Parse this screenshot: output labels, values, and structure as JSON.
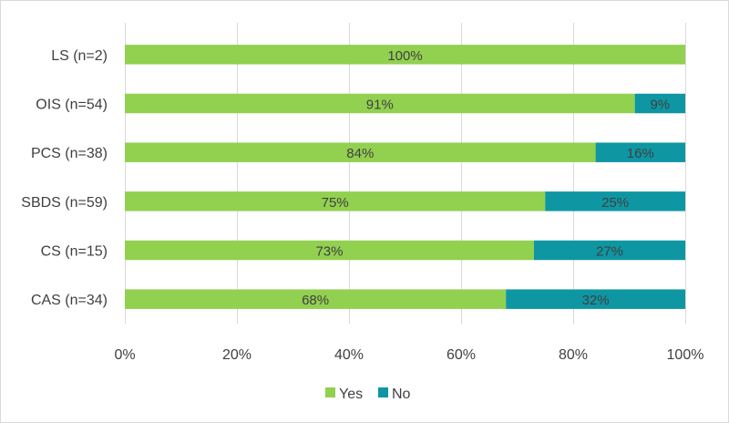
{
  "chart_data": {
    "type": "bar",
    "orientation": "horizontal",
    "stacked": true,
    "title": "",
    "xlabel": "",
    "ylabel": "",
    "categories": [
      "LS (n=2)",
      "OIS (n=54)",
      "PCS (n=38)",
      "SBDS (n=59)",
      "CS (n=15)",
      "CAS (n=34)"
    ],
    "series": [
      {
        "name": "Yes",
        "color": "#92d050",
        "values": [
          100,
          91,
          84,
          75,
          73,
          68
        ],
        "labels": [
          "100%",
          "91%",
          "84%",
          "75%",
          "73%",
          "68%"
        ]
      },
      {
        "name": "No",
        "color": "#0e96a3",
        "values": [
          0,
          9,
          16,
          25,
          27,
          32
        ],
        "labels": [
          "",
          "9%",
          "16%",
          "25%",
          "27%",
          "32%"
        ]
      }
    ],
    "xlim": [
      0,
      100
    ],
    "xticks": [
      "0%",
      "20%",
      "40%",
      "60%",
      "80%",
      "100%"
    ],
    "grid": true,
    "legend_position": "bottom"
  }
}
